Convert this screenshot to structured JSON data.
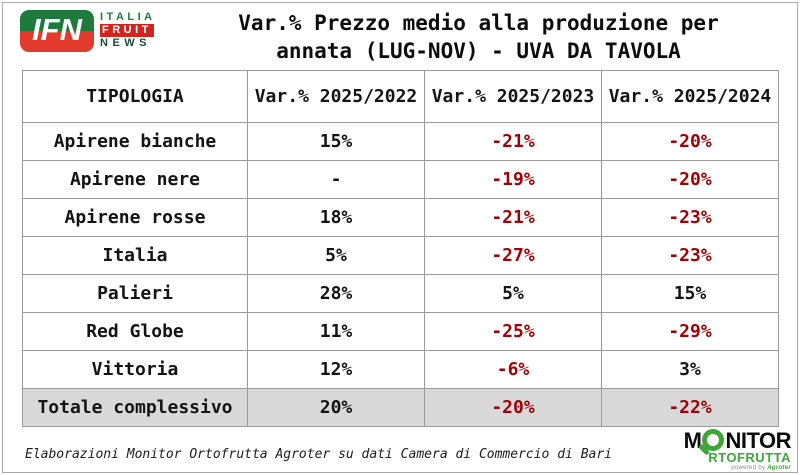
{
  "colors": {
    "negative": "#9C0006",
    "total_row_bg": "#D9D9D9",
    "ifn_green": "#1E7A3C",
    "ifn_red": "#E23B2E",
    "fruit_badge_red": "#D2241E",
    "news_green": "#17502F",
    "monitor_green": "#3EA636"
  },
  "header": {
    "ifn_logo": {
      "monogram": "IFN",
      "line1": "ITALIA",
      "line2": "FRUIT",
      "line3": "NEWS"
    },
    "title_line1": "Var.% Prezzo medio alla produzione per",
    "title_line2": "annata (LUG-NOV) - UVA DA TAVOLA"
  },
  "chart_data": {
    "type": "table",
    "title": "Var.% Prezzo medio alla produzione per annata (LUG-NOV) - UVA DA TAVOLA",
    "columns": [
      "TIPOLOGIA",
      "Var.% 2025/2022",
      "Var.% 2025/2023",
      "Var.% 2025/2024"
    ],
    "rows": [
      {
        "tipologia": "Apirene bianche",
        "values": [
          "15%",
          "-21%",
          "-20%"
        ],
        "is_total": false
      },
      {
        "tipologia": "Apirene nere",
        "values": [
          "-",
          "-19%",
          "-20%"
        ],
        "is_total": false
      },
      {
        "tipologia": "Apirene rosse",
        "values": [
          "18%",
          "-21%",
          "-23%"
        ],
        "is_total": false
      },
      {
        "tipologia": "Italia",
        "values": [
          "5%",
          "-27%",
          "-23%"
        ],
        "is_total": false
      },
      {
        "tipologia": "Palieri",
        "values": [
          "28%",
          "5%",
          "15%"
        ],
        "is_total": false
      },
      {
        "tipologia": "Red Globe",
        "values": [
          "11%",
          "-25%",
          "-29%"
        ],
        "is_total": false
      },
      {
        "tipologia": "Vittoria",
        "values": [
          "12%",
          "-6%",
          "3%"
        ],
        "is_total": false
      },
      {
        "tipologia": "Totale complessivo",
        "values": [
          "20%",
          "-20%",
          "-22%"
        ],
        "is_total": true
      }
    ]
  },
  "footer": {
    "credit": "Elaborazioni Monitor Ortofrutta Agroter su dati Camera di Commercio di Bari",
    "monitor_logo": {
      "word_start": "M",
      "word_rest": "NITOR",
      "line2": "RTOFRUTTA",
      "powered_by": "powered by",
      "brand": "Agroter"
    }
  }
}
